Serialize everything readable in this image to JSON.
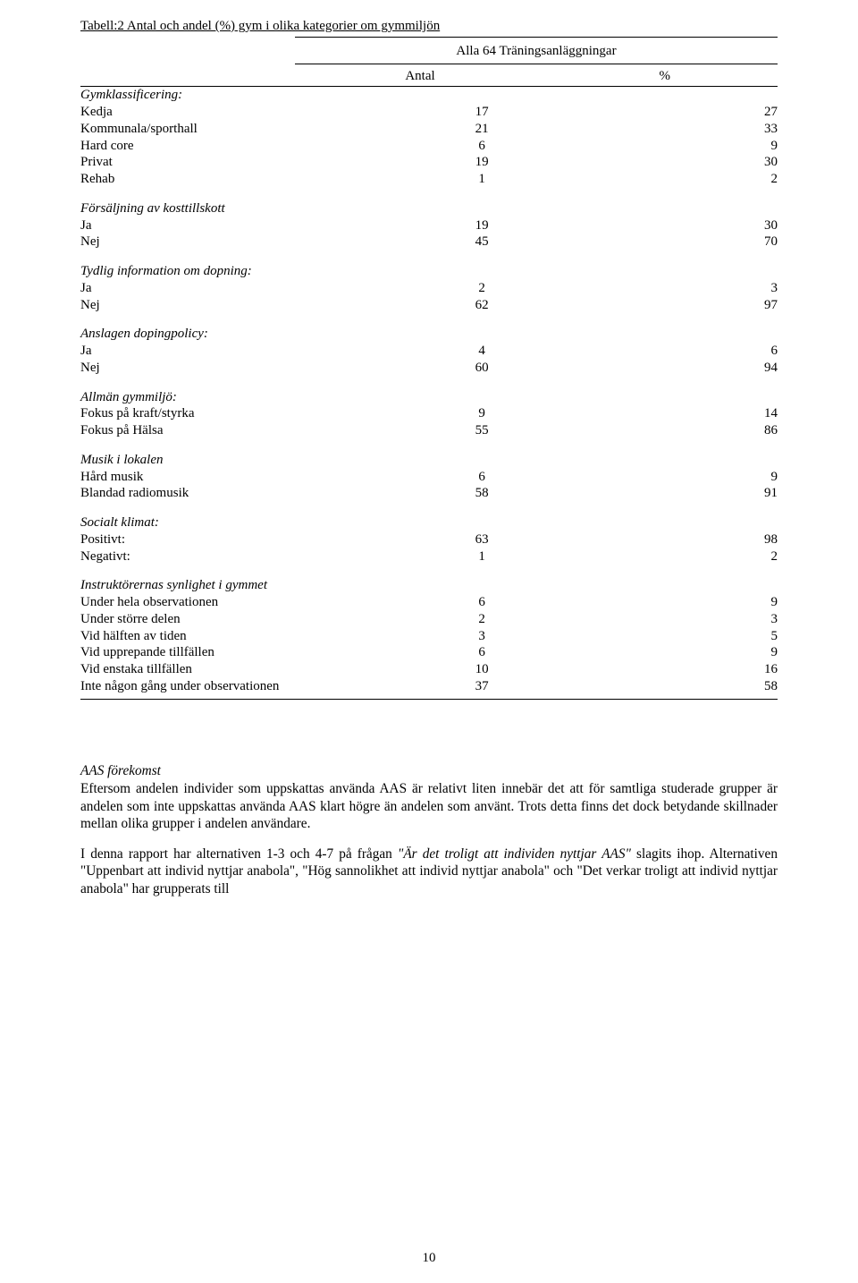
{
  "table": {
    "title": "Tabell:2 Antal och andel (%) gym i olika kategorier om gymmiljön",
    "band_title": "Alla 64 Träningsanläggningar",
    "col_antal": "Antal",
    "col_pct": "%",
    "sections": [
      {
        "head": "Gymklassificering:",
        "rows": [
          {
            "label": "Kedja",
            "antal": "17",
            "pct": "27"
          },
          {
            "label": "Kommunala/sporthall",
            "antal": "21",
            "pct": "33"
          },
          {
            "label": "Hard core",
            "antal": "6",
            "pct": "9"
          },
          {
            "label": "Privat",
            "antal": "19",
            "pct": "30"
          },
          {
            "label": "Rehab",
            "antal": "1",
            "pct": "2"
          }
        ]
      },
      {
        "head": "Försäljning av kosttillskott",
        "rows": [
          {
            "label": "Ja",
            "antal": "19",
            "pct": "30"
          },
          {
            "label": "Nej",
            "antal": "45",
            "pct": "70"
          }
        ]
      },
      {
        "head": "Tydlig information om dopning:",
        "rows": [
          {
            "label": "Ja",
            "antal": "2",
            "pct": "3"
          },
          {
            "label": "Nej",
            "antal": "62",
            "pct": "97"
          }
        ]
      },
      {
        "head": "Anslagen dopingpolicy:",
        "rows": [
          {
            "label": "Ja",
            "antal": "4",
            "pct": "6"
          },
          {
            "label": "Nej",
            "antal": "60",
            "pct": "94"
          }
        ]
      },
      {
        "head": "Allmän gymmiljö:",
        "rows": [
          {
            "label": "Fokus på kraft/styrka",
            "antal": "9",
            "pct": "14"
          },
          {
            "label": "Fokus på Hälsa",
            "antal": "55",
            "pct": "86"
          }
        ]
      },
      {
        "head": "Musik i lokalen",
        "rows": [
          {
            "label": "Hård musik",
            "antal": "6",
            "pct": "9"
          },
          {
            "label": "Blandad radiomusik",
            "antal": "58",
            "pct": "91"
          }
        ]
      },
      {
        "head": "Socialt klimat:",
        "rows": [
          {
            "label": "Positivt:",
            "antal": "63",
            "pct": "98"
          },
          {
            "label": "Negativt:",
            "antal": "1",
            "pct": "2"
          }
        ]
      },
      {
        "head": "Instruktörernas synlighet i gymmet",
        "rows": [
          {
            "label": "Under hela observationen",
            "antal": "6",
            "pct": "9"
          },
          {
            "label": "Under större delen",
            "antal": "2",
            "pct": "3"
          },
          {
            "label": "Vid hälften av tiden",
            "antal": "3",
            "pct": "5"
          },
          {
            "label": "Vid upprepande tillfällen",
            "antal": "6",
            "pct": "9"
          },
          {
            "label": "Vid enstaka tillfällen",
            "antal": "10",
            "pct": "16"
          },
          {
            "label": "Inte någon gång under observationen",
            "antal": "37",
            "pct": "58"
          }
        ]
      }
    ]
  },
  "body": {
    "heading": "AAS förekomst",
    "p1": "Eftersom andelen individer som uppskattas använda AAS är relativt liten innebär det att för samtliga studerade grupper är andelen som inte uppskattas använda AAS klart högre än andelen som använt. Trots detta finns det dock betydande skillnader mellan olika grupper i andelen användare.",
    "p2a": "I denna rapport har alternativen 1-3 och 4-7 på frågan ",
    "p2q": "\"Är det troligt att individen nyttjar AAS\"",
    "p2b": " slagits ihop. Alternativen \"Uppenbart att individ nyttjar anabola\", \"Hög sannolikhet att individ nyttjar anabola\" och \"Det verkar troligt att individ nyttjar anabola\" har grupperats till"
  },
  "page_number": "10"
}
